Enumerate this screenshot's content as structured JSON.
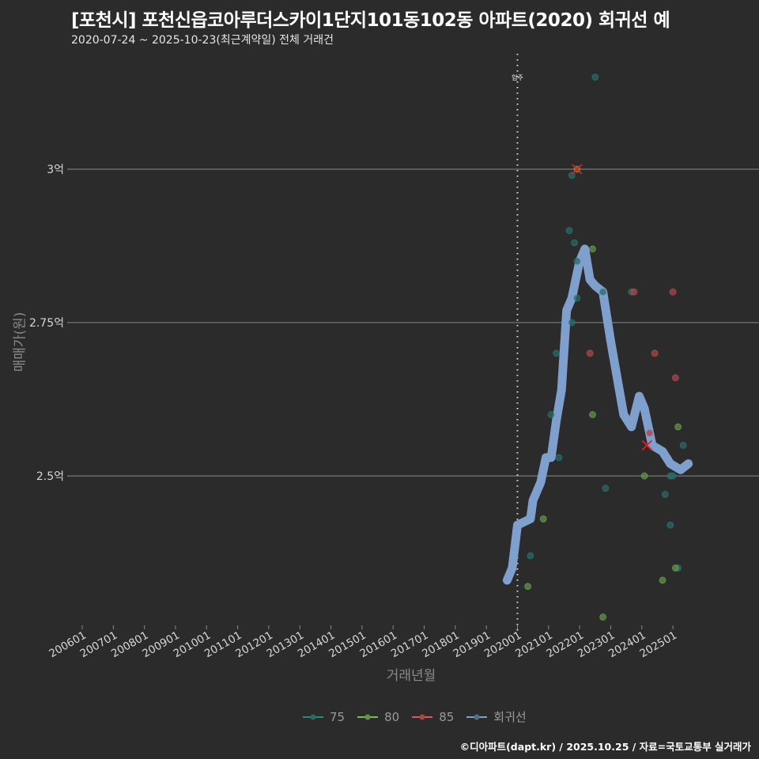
{
  "header": {
    "title": "[포천시] 포천신읍코아루더스카이1단지101동102동 아파트(2020) 회귀선 예",
    "subtitle": "2020-07-24 ~ 2025-10-23(최근계약일) 전체 거래건"
  },
  "axes": {
    "ylabel": "매매가(원)",
    "xlabel": "거래년월",
    "yticks": [
      "3억",
      "2.75억",
      "2.5억"
    ],
    "xticks": [
      "200601",
      "200701",
      "200801",
      "200901",
      "201001",
      "201101",
      "201201",
      "201301",
      "201401",
      "201501",
      "201601",
      "201701",
      "201801",
      "201901",
      "202001",
      "202101",
      "202201",
      "202301",
      "202401",
      "202501"
    ]
  },
  "annotation": {
    "label": "입주"
  },
  "legend": [
    {
      "label": "75",
      "color": "#2a8a80"
    },
    {
      "label": "80",
      "color": "#7dbb5a"
    },
    {
      "label": "85",
      "color": "#d95a5a"
    },
    {
      "label": "회귀선",
      "color": "#7f9fcc"
    }
  ],
  "footer": "©디아파트(dapt.kr) / 2025.10.25 / 자료=국토교통부 실거래가",
  "chart_data": {
    "type": "scatter",
    "title": "[포천시] 포천신읍코아루더스카이1단지101동102동 아파트(2020) 회귀선 예",
    "subtitle": "2020-07-24 ~ 2025-10-23(최근계약일) 전체 거래건",
    "xlabel": "거래년월",
    "ylabel": "매매가(원)",
    "ylim_eok": [
      2.25,
      3.18
    ],
    "yticks_eok": [
      2.5,
      2.75,
      3.0
    ],
    "xlim": [
      "200601",
      "202510"
    ],
    "grid": "horizontal major lines",
    "legend_position": "bottom",
    "vline": {
      "x": "202001",
      "label": "입주",
      "style": "dotted"
    },
    "series": [
      {
        "name": "75",
        "color": "#2a8a80",
        "points": [
          [
            "2020-06",
            2.37
          ],
          [
            "2021-09",
            2.9
          ],
          [
            "2021-10",
            2.99
          ],
          [
            "2022-07",
            3.15
          ],
          [
            "2021-11",
            2.88
          ],
          [
            "2021-12",
            2.85
          ],
          [
            "2021-12",
            2.79
          ],
          [
            "2022-10",
            2.8
          ],
          [
            "2022-11",
            2.48
          ],
          [
            "2023-09",
            2.8
          ],
          [
            "2024-10",
            2.47
          ],
          [
            "2024-12",
            2.5
          ],
          [
            "2024-12",
            2.42
          ],
          [
            "2025-01",
            2.5
          ],
          [
            "2025-03",
            2.35
          ],
          [
            "2025-05",
            2.55
          ],
          [
            "2021-05",
            2.53
          ],
          [
            "2021-02",
            2.6
          ],
          [
            "2021-04",
            2.7
          ],
          [
            "2021-10",
            2.75
          ]
        ]
      },
      {
        "name": "80",
        "color": "#7dbb5a",
        "points": [
          [
            "2020-05",
            2.32
          ],
          [
            "2020-11",
            2.43
          ],
          [
            "2021-12",
            3.0
          ],
          [
            "2022-06",
            2.87
          ],
          [
            "2022-06",
            2.6
          ],
          [
            "2022-10",
            2.27
          ],
          [
            "2024-02",
            2.5
          ],
          [
            "2025-02",
            2.35
          ],
          [
            "2024-09",
            2.33
          ],
          [
            "2025-03",
            2.58
          ]
        ]
      },
      {
        "name": "85",
        "color": "#d95a5a",
        "points": [
          [
            "2022-05",
            2.7
          ],
          [
            "2023-10",
            2.8
          ],
          [
            "2024-06",
            2.7
          ],
          [
            "2025-01",
            2.8
          ],
          [
            "2025-02",
            2.66
          ],
          [
            "2024-04",
            2.57
          ]
        ]
      },
      {
        "name": "회귀선",
        "color": "#7f9fcc",
        "points": [
          [
            "2019-09",
            2.33
          ],
          [
            "2019-11",
            2.35
          ],
          [
            "2020-01",
            2.42
          ],
          [
            "2020-06",
            2.43
          ],
          [
            "2020-07",
            2.46
          ],
          [
            "2020-10",
            2.49
          ],
          [
            "2020-12",
            2.53
          ],
          [
            "2021-02",
            2.53
          ],
          [
            "2021-04",
            2.59
          ],
          [
            "2021-06",
            2.64
          ],
          [
            "2021-08",
            2.77
          ],
          [
            "2021-10",
            2.79
          ],
          [
            "2022-01",
            2.85
          ],
          [
            "2022-03",
            2.87
          ],
          [
            "2022-05",
            2.82
          ],
          [
            "2022-07",
            2.81
          ],
          [
            "2022-10",
            2.8
          ],
          [
            "2023-01",
            2.72
          ],
          [
            "2023-06",
            2.6
          ],
          [
            "2023-09",
            2.58
          ],
          [
            "2023-12",
            2.63
          ],
          [
            "2024-02",
            2.61
          ],
          [
            "2024-05",
            2.55
          ],
          [
            "2024-09",
            2.54
          ],
          [
            "2024-12",
            2.52
          ],
          [
            "2025-04",
            2.51
          ],
          [
            "2025-07",
            2.52
          ]
        ]
      }
    ],
    "highlighted_points": [
      {
        "x": "2021-12",
        "y": 3.0,
        "marker": "x",
        "color": "#dd2222"
      },
      {
        "x": "2024-03",
        "y": 2.55,
        "marker": "x",
        "color": "#dd2222"
      }
    ]
  }
}
